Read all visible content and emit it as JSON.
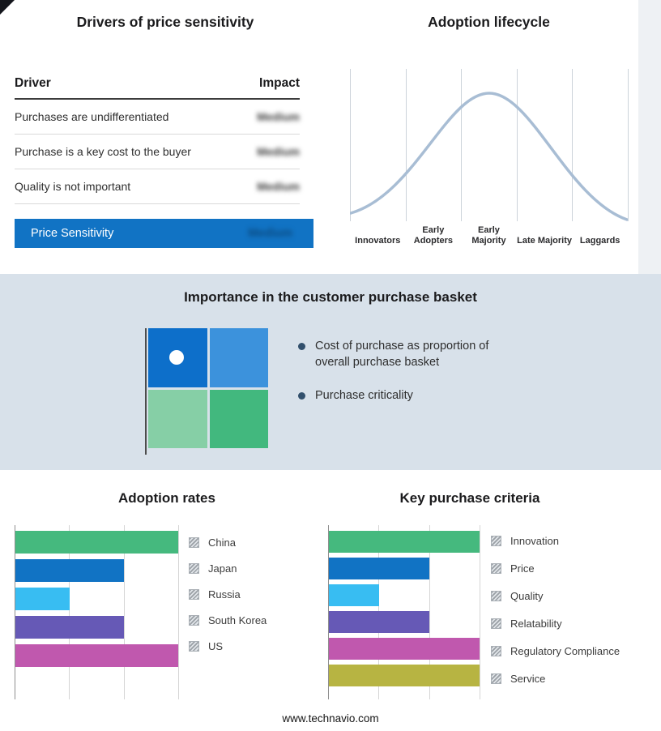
{
  "meta": {
    "footer_url": "www.technavio.com"
  },
  "drivers_panel": {
    "title": "Drivers of price sensitivity",
    "table": {
      "header": {
        "driver": "Driver",
        "impact": "Impact"
      },
      "rows": [
        {
          "driver": "Purchases are undifferentiated",
          "impact": "Medium"
        },
        {
          "driver": "Purchase is a key cost to the buyer",
          "impact": "Medium"
        },
        {
          "driver": "Quality is not important",
          "impact": "Medium"
        }
      ],
      "summary": {
        "label": "Price Sensitivity",
        "impact": "Medium",
        "bg_color": "#1173c4"
      }
    }
  },
  "lifecycle_panel": {
    "title": "Adoption lifecycle"
  },
  "basket_panel": {
    "title": "Importance in the customer purchase basket",
    "bullets": [
      "Cost of purchase as proportion of overall purchase basket",
      "Purchase criticality"
    ],
    "quadrant_colors": {
      "top_left": "#0d6fca",
      "top_right": "#3c92dc",
      "bottom_left": "#86cfa6",
      "bottom_right": "#42b87e"
    }
  },
  "adoption_panel": {
    "title": "Adoption rates"
  },
  "criteria_panel": {
    "title": "Key purchase criteria"
  },
  "chart_data": [
    {
      "id": "adoption-lifecycle",
      "type": "line",
      "subtype": "bell_curve",
      "title": "Adoption lifecycle",
      "categories": [
        "Innovators",
        "Early Adopters",
        "Early Majority",
        "Late Majority",
        "Laggards"
      ],
      "peak_category": "Early Majority",
      "line_color": "#a8bdd4",
      "grid": true
    },
    {
      "id": "adoption-rates",
      "type": "bar",
      "orientation": "horizontal",
      "title": "Adoption rates",
      "categories": [
        "China",
        "Japan",
        "Russia",
        "South Korea",
        "US"
      ],
      "values": [
        3,
        2,
        1,
        2,
        3
      ],
      "xlim": [
        0,
        3
      ],
      "gridline_values": [
        0,
        1,
        2,
        3
      ],
      "bar_colors": [
        "#45b97e",
        "#1173c4",
        "#38bdf2",
        "#6659b6",
        "#c058ae"
      ],
      "legend_position": "right",
      "grid": true
    },
    {
      "id": "key-purchase-criteria",
      "type": "bar",
      "orientation": "horizontal",
      "title": "Key purchase criteria",
      "categories": [
        "Innovation",
        "Price",
        "Quality",
        "Relatability",
        "Regulatory Compliance",
        "Service"
      ],
      "values": [
        3,
        2,
        1,
        2,
        3,
        3
      ],
      "xlim": [
        0,
        3
      ],
      "gridline_values": [
        0,
        1,
        2,
        3
      ],
      "bar_colors": [
        "#45b97e",
        "#1173c4",
        "#38bdf2",
        "#6659b6",
        "#c058ae",
        "#b7b442"
      ],
      "legend_position": "right",
      "grid": true
    }
  ]
}
